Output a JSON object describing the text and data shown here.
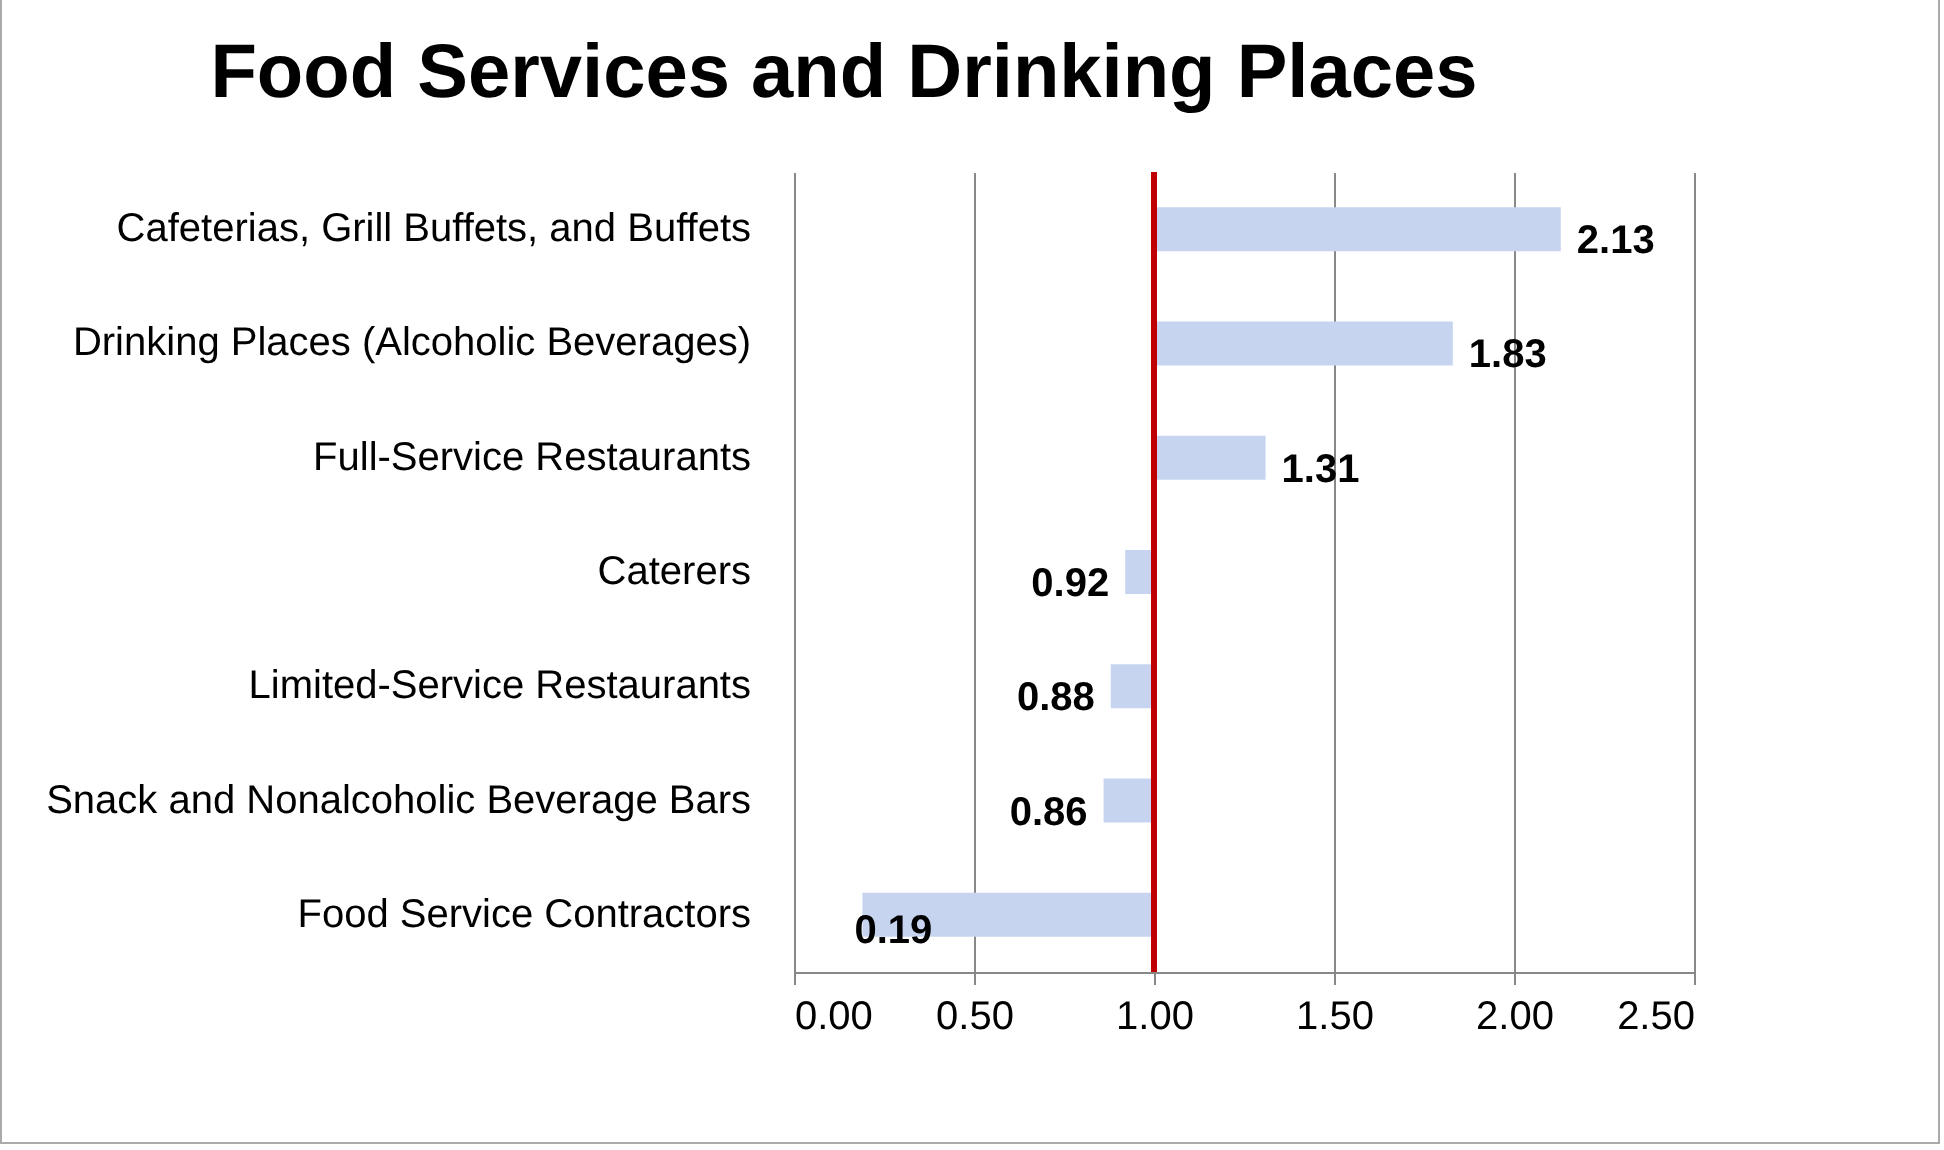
{
  "chart_data": {
    "type": "bar",
    "orientation": "horizontal",
    "title": "Food Services and Drinking Places",
    "categories": [
      "Cafeterias, Grill Buffets, and Buffets",
      "Drinking Places (Alcoholic Beverages)",
      "Full-Service Restaurants",
      "Caterers",
      "Limited-Service Restaurants",
      "Snack and Nonalcoholic Beverage Bars",
      "Food Service Contractors"
    ],
    "base": [
      1,
      1,
      1,
      1,
      1,
      1,
      1
    ],
    "values": [
      1.13,
      0.83,
      0.31,
      -0.08,
      -0.12,
      -0.14,
      -0.81
    ],
    "value_labels": [
      "2.13",
      "1.83",
      "1.31",
      "0.92",
      "0.88",
      "0.86",
      "0.19"
    ],
    "color": "#c6d4f0",
    "xlim": [
      0,
      2.5
    ],
    "xticks": [
      {
        "value": 0,
        "label": "0.00"
      },
      {
        "value": 0.5,
        "label": "0.50"
      },
      {
        "value": 1,
        "label": "1.00"
      },
      {
        "value": 1.5,
        "label": "1.50"
      },
      {
        "value": 2,
        "label": "2.00"
      },
      {
        "value": 2.5,
        "label": "2.50"
      }
    ],
    "grid": "x",
    "ref_lines": [
      {
        "axis": "x",
        "value": 1,
        "color": "#c00000"
      }
    ]
  }
}
